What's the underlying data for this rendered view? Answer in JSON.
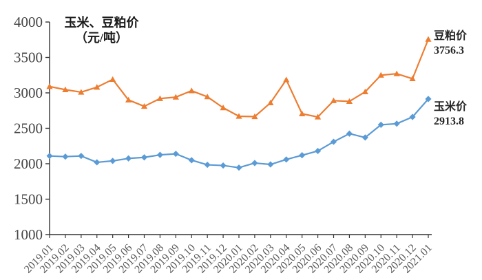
{
  "chart_data": {
    "type": "line",
    "title": "玉米、豆粕价",
    "title_unit": "（元/吨）",
    "ylabel": "",
    "xlabel": "",
    "ylim": [
      1000,
      4000
    ],
    "yticks": [
      4000,
      3500,
      3000,
      2500,
      2000,
      1500,
      1000
    ],
    "grid": false,
    "legend_position": "right-end-labels",
    "categories": [
      "2019.01",
      "2019.02",
      "2019.03",
      "2019.04",
      "2019.05",
      "2019.06",
      "2019.07",
      "2019.08",
      "2019.09",
      "2019.10",
      "2019.11",
      "2019.12",
      "2020.01",
      "2020.02",
      "2020.03",
      "2020.04",
      "2020.05",
      "2020.06",
      "2020.07",
      "2020.08",
      "2020.09",
      "2020.10",
      "2020.11",
      "2020.12",
      "2021.01"
    ],
    "series": [
      {
        "name": "豆粕价",
        "end_label": "3756.3",
        "color": "#ED7D31",
        "marker": "triangle",
        "values": [
          3090,
          3045,
          3010,
          3080,
          3190,
          2900,
          2810,
          2920,
          2940,
          3030,
          2945,
          2790,
          2670,
          2665,
          2860,
          3185,
          2705,
          2660,
          2890,
          2880,
          3015,
          3250,
          3270,
          3200,
          3756.3
        ]
      },
      {
        "name": "玉米价",
        "end_label": "2913.8",
        "color": "#5B9BD5",
        "marker": "diamond",
        "values": [
          2110,
          2100,
          2110,
          2020,
          2040,
          2075,
          2090,
          2125,
          2140,
          2050,
          1985,
          1975,
          1945,
          2010,
          1990,
          2060,
          2120,
          2180,
          2310,
          2425,
          2370,
          2550,
          2565,
          2660,
          2913.8
        ]
      }
    ],
    "colors": {
      "axis": "#333333",
      "y_tick_label": "#454545",
      "x_tick_label": "#595959",
      "title_text": "#1a1a1a",
      "end_label_text": "#262626",
      "background": "#ffffff"
    }
  }
}
